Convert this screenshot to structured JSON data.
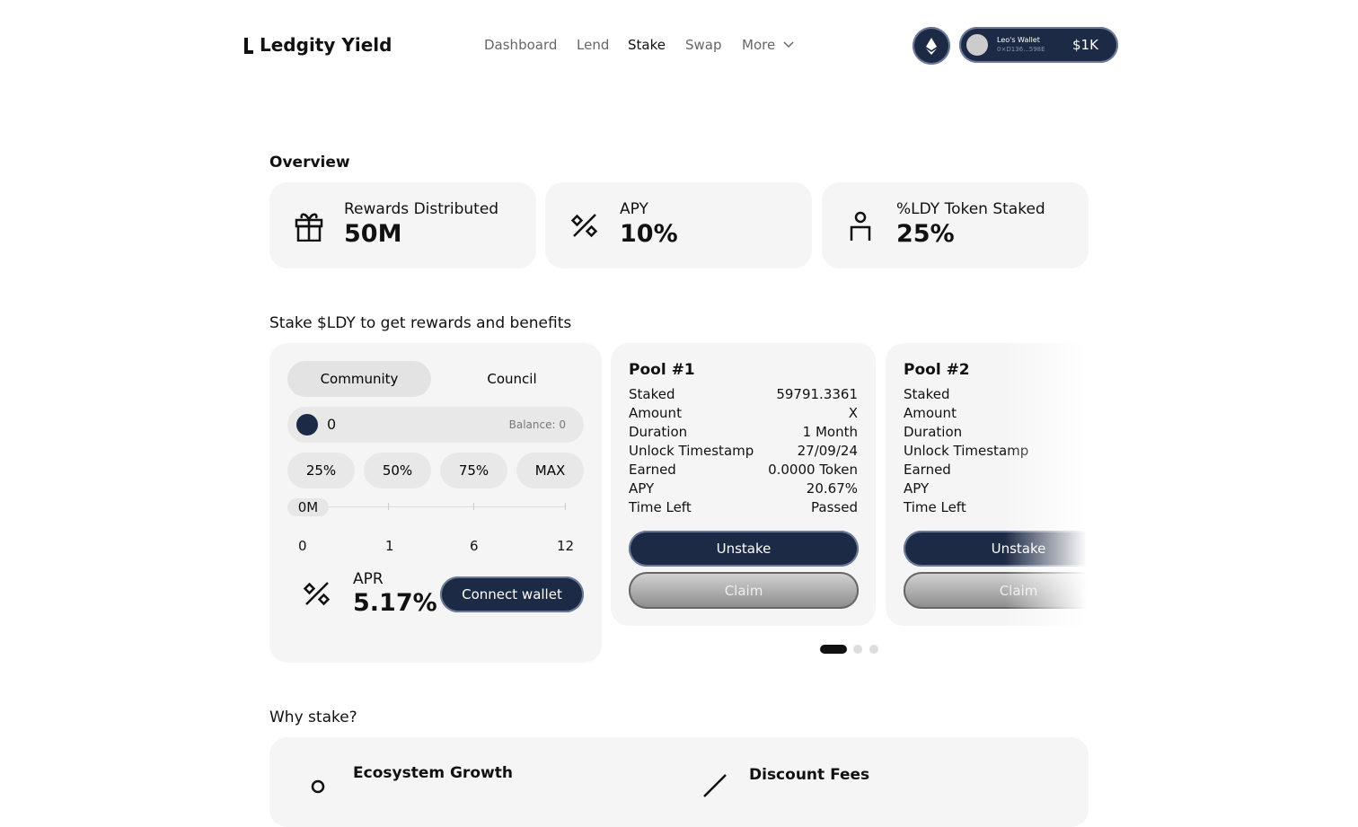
{
  "header": {
    "logo": "Ledgity Yield",
    "nav": [
      "Dashboard",
      "Lend",
      "Stake",
      "Swap",
      "More"
    ],
    "wallet": {
      "name": "Leo's Wallet",
      "address": "0×D136...598E",
      "balance": "$1K"
    }
  },
  "overview": {
    "title": "Overview",
    "cards": [
      {
        "label": "Rewards Distributed",
        "value": "50M"
      },
      {
        "label": "APY",
        "value": "10%"
      },
      {
        "label": "%LDY Token Staked",
        "value": "25%"
      }
    ]
  },
  "stake": {
    "title": "Stake $LDY to get rewards and benefits",
    "tabs": [
      "Community",
      "Council"
    ],
    "amount": "0",
    "balance": "Balance: 0",
    "percent_buttons": [
      "25%",
      "50%",
      "75%",
      "MAX"
    ],
    "slider_badge": "0M",
    "slider_marks": [
      "0",
      "1",
      "6",
      "12"
    ],
    "apr_label": "APR",
    "apr_value": "5.17%",
    "connect_button": "Connect wallet"
  },
  "pools": [
    {
      "title": "Pool #1",
      "rows": [
        [
          "Staked",
          "59791.3361"
        ],
        [
          "Amount",
          "X"
        ],
        [
          "Duration",
          "1 Month"
        ],
        [
          "Unlock Timestamp",
          "27/09/24"
        ],
        [
          "Earned",
          "0.0000 Token"
        ],
        [
          "APY",
          "20.67%"
        ],
        [
          "Time Left",
          "Passed"
        ]
      ],
      "unstake": "Unstake",
      "claim": "Claim"
    },
    {
      "title": "Pool #2",
      "rows": [
        [
          "Staked"
        ],
        [
          "Amount"
        ],
        [
          "Duration"
        ],
        [
          "Unlock Timestamp"
        ],
        [
          "Earned"
        ],
        [
          "APY"
        ],
        [
          "Time Left"
        ]
      ],
      "unstake": "Unstake",
      "claim": "Claim"
    }
  ],
  "why": {
    "title": "Why stake?",
    "items": [
      "Ecosystem Growth",
      "Discount Fees"
    ]
  }
}
